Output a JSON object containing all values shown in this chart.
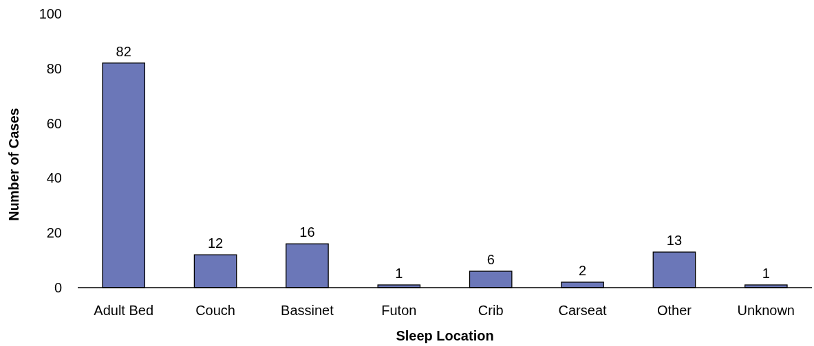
{
  "chart_data": {
    "type": "bar",
    "xlabel": "Sleep Location",
    "ylabel": "Number of Cases",
    "categories": [
      "Adult Bed",
      "Couch",
      "Bassinet",
      "Futon",
      "Crib",
      "Carseat",
      "Other",
      "Unknown"
    ],
    "values": [
      82,
      12,
      16,
      1,
      6,
      2,
      13,
      1
    ],
    "color": "#6b77b8",
    "ylim": [
      0,
      100
    ],
    "yticks": [
      0,
      20,
      40,
      60,
      80,
      100
    ],
    "grid": false,
    "data_labels": true
  }
}
